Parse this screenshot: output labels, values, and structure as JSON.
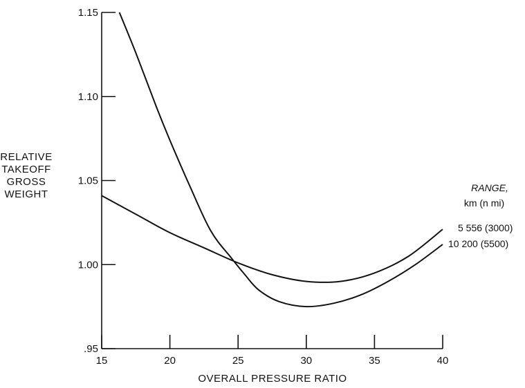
{
  "chart_data": {
    "type": "line",
    "xlabel": "OVERALL PRESSURE RATIO",
    "ylabel_lines": [
      "RELATIVE",
      "TAKEOFF",
      "GROSS",
      "WEIGHT"
    ],
    "xlim": [
      15,
      40
    ],
    "ylim": [
      0.95,
      1.15
    ],
    "x_ticks": [
      15,
      20,
      25,
      30,
      35,
      40
    ],
    "x_tick_labels": [
      "15",
      "20",
      "25",
      "30",
      "35",
      "40"
    ],
    "y_ticks": [
      0.95,
      1.0,
      1.05,
      1.1,
      1.15
    ],
    "y_tick_labels": [
      ".95",
      "1.00",
      "1.05",
      "1.10",
      "1.15"
    ],
    "legend_title_lines": [
      "RANGE,",
      "km  (n mi)"
    ],
    "series": [
      {
        "name": "5 556  (3000)",
        "x": [
          15,
          17.5,
          20,
          22.5,
          25,
          27.5,
          30,
          32.5,
          35,
          37.5,
          40
        ],
        "y": [
          1.041,
          1.03,
          1.019,
          1.01,
          1.001,
          0.994,
          0.99,
          0.99,
          0.995,
          1.005,
          1.021
        ]
      },
      {
        "name": "10 200  (5500)",
        "x": [
          16.3,
          17.5,
          19,
          20,
          21.5,
          23,
          24.5,
          25.5,
          26.5,
          28,
          30,
          32,
          34,
          36,
          38,
          40
        ],
        "y": [
          1.15,
          1.126,
          1.094,
          1.074,
          1.046,
          1.02,
          1.004,
          0.994,
          0.985,
          0.978,
          0.975,
          0.977,
          0.982,
          0.99,
          1.0,
          1.012
        ]
      }
    ],
    "grid": false,
    "legend_position": "right"
  }
}
